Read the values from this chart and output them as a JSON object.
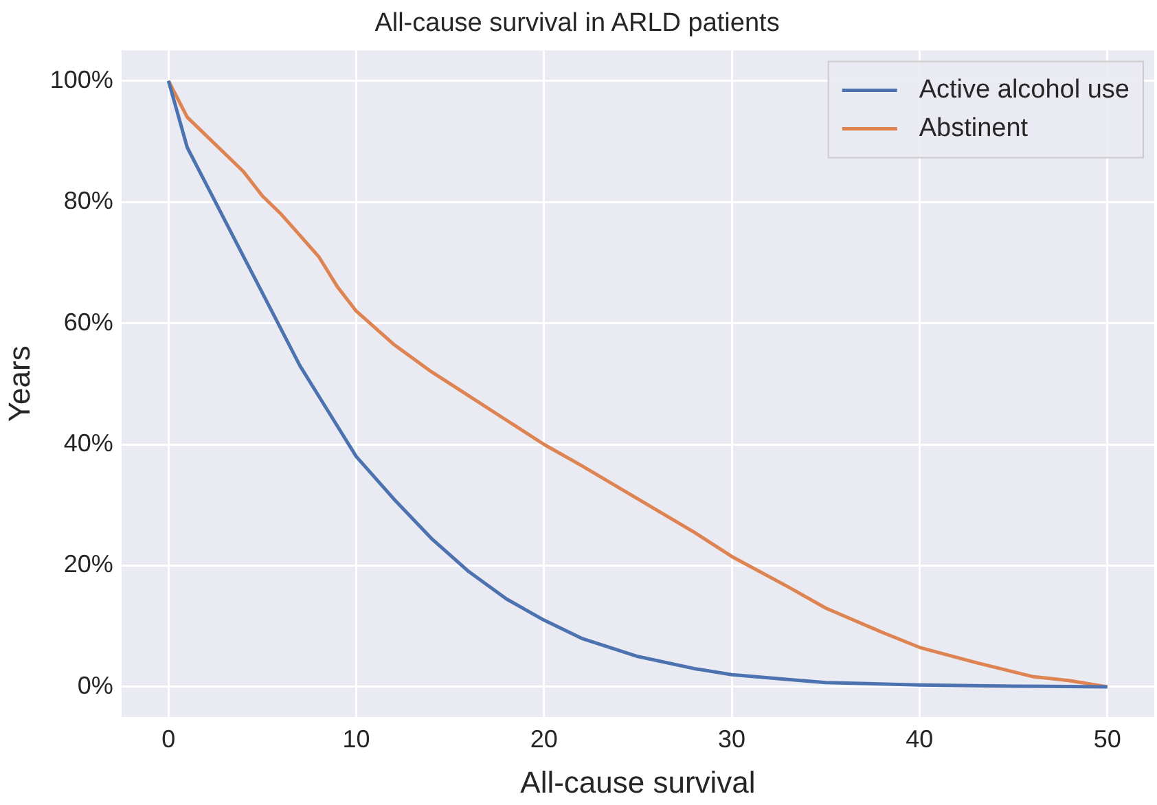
{
  "chart_data": {
    "type": "line",
    "title": "All-cause survival in ARLD patients",
    "xlabel": "All-cause survival",
    "ylabel": "Years",
    "xlim": [
      -2.5,
      52.5
    ],
    "xticks": [
      0,
      10,
      20,
      30,
      40,
      50
    ],
    "ylim": [
      -5,
      105
    ],
    "yticks": [
      {
        "value": 0,
        "label": "0%"
      },
      {
        "value": 20,
        "label": "20%"
      },
      {
        "value": 40,
        "label": "40%"
      },
      {
        "value": 60,
        "label": "60%"
      },
      {
        "value": 80,
        "label": "80%"
      },
      {
        "value": 100,
        "label": "100%"
      }
    ],
    "grid": true,
    "legend": "top right",
    "marker": "none",
    "line_style": "solid",
    "series": [
      {
        "name": "Active alcohol use",
        "color": "#4c72b0",
        "x": [
          0,
          1,
          2,
          3,
          4,
          5,
          6,
          7,
          8,
          9,
          10,
          12,
          14,
          16,
          18,
          20,
          22,
          25,
          28,
          30,
          33,
          35,
          40,
          45,
          50
        ],
        "values": [
          100,
          89,
          83,
          77,
          71,
          65,
          59,
          53,
          48,
          43,
          38,
          31,
          24.5,
          19,
          14.5,
          11,
          8,
          5,
          3,
          2,
          1.2,
          0.7,
          0.3,
          0.1,
          0
        ]
      },
      {
        "name": "Abstinent",
        "color": "#dd8452",
        "x": [
          0,
          1,
          2,
          3,
          4,
          5,
          6,
          7,
          8,
          9,
          10,
          12,
          14,
          16,
          18,
          20,
          22,
          25,
          28,
          30,
          33,
          35,
          38,
          40,
          43,
          46,
          48,
          50
        ],
        "values": [
          100,
          94,
          91,
          88,
          85,
          81,
          78,
          74.5,
          71,
          66,
          62,
          56.5,
          52,
          48,
          44,
          40,
          36.5,
          31,
          25.5,
          21.5,
          16.5,
          13,
          9,
          6.5,
          4,
          1.7,
          1,
          0
        ]
      }
    ]
  }
}
